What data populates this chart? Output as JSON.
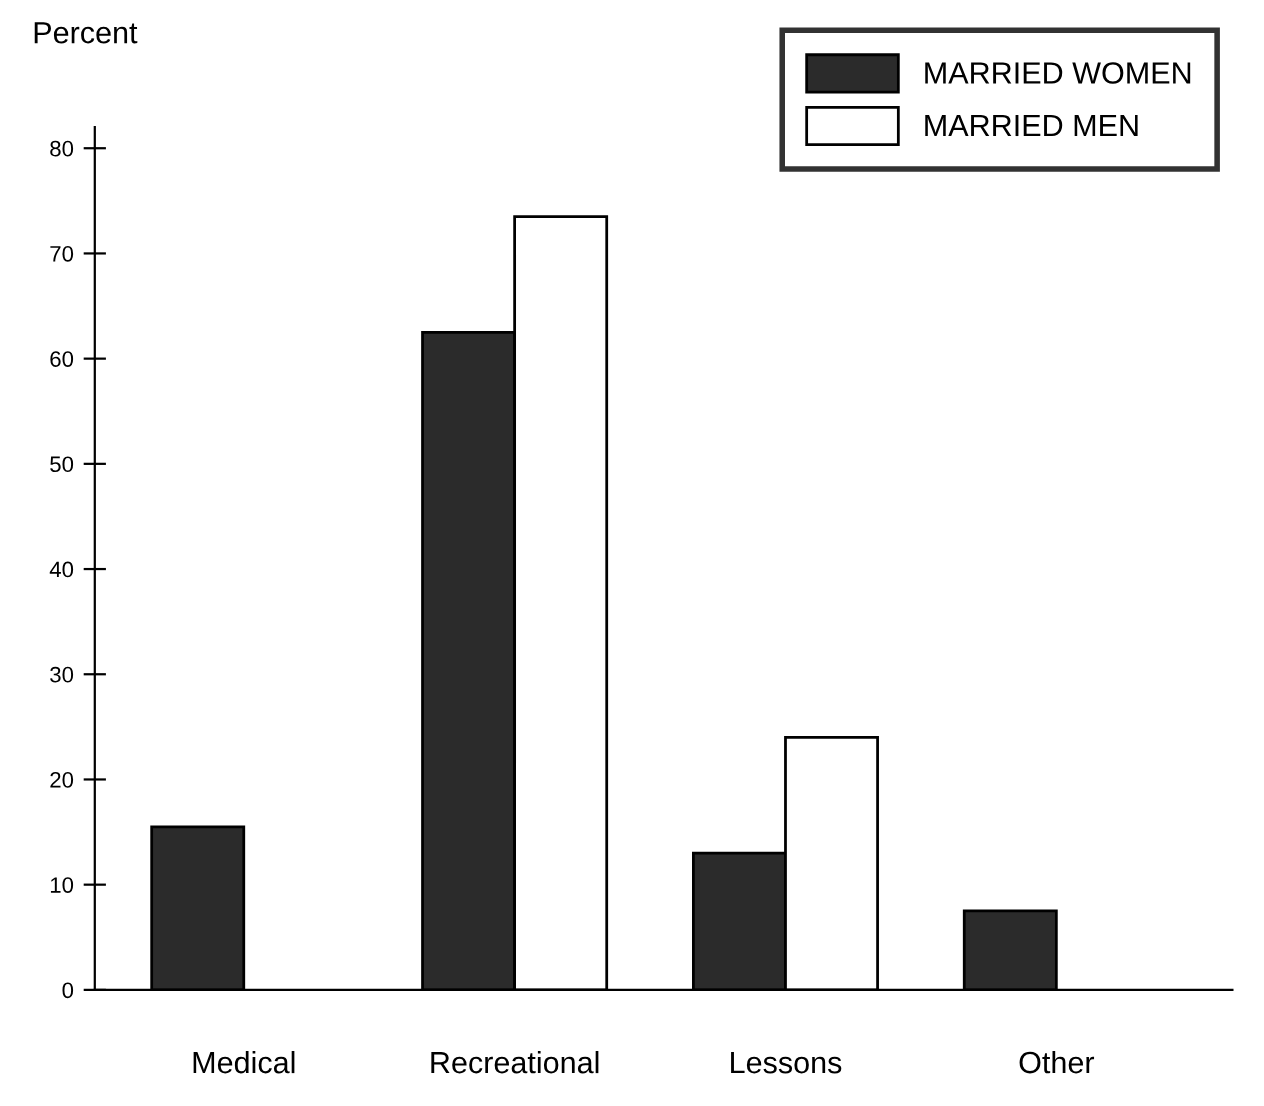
{
  "chart_data": {
    "type": "bar",
    "ylabel": "Percent",
    "categories": [
      "Medical",
      "Recreational",
      "Lessons",
      "Other"
    ],
    "series": [
      {
        "name": "MARRIED WOMEN",
        "color": "#2b2b2b",
        "values": [
          15.5,
          62.5,
          13,
          7.5
        ]
      },
      {
        "name": "MARRIED MEN",
        "color": "#ffffff",
        "values": [
          null,
          73.5,
          24,
          null
        ]
      }
    ],
    "ylim": [
      0,
      82
    ],
    "yticks": [
      0,
      10,
      20,
      30,
      40,
      50,
      60,
      70,
      80
    ],
    "grid": false,
    "legend": "top right"
  }
}
